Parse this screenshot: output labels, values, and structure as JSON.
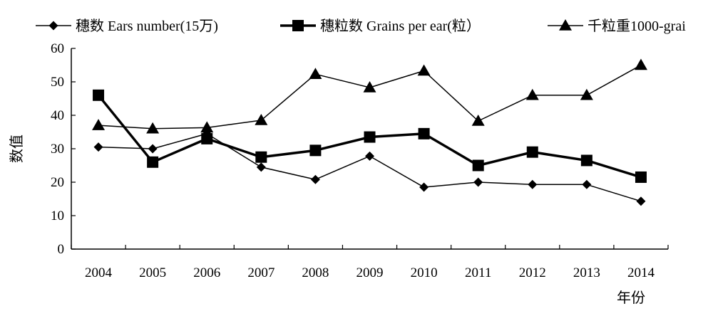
{
  "chart_data": {
    "type": "line",
    "categories": [
      "2004",
      "2005",
      "2006",
      "2007",
      "2008",
      "2009",
      "2010",
      "2011",
      "2012",
      "2013",
      "2014"
    ],
    "series": [
      {
        "name": "穗数 Ears number(15万)",
        "marker": "diamond",
        "values": [
          30.5,
          30,
          34.5,
          24.5,
          20.8,
          27.8,
          18.5,
          20,
          19.3,
          19.3,
          14.3
        ]
      },
      {
        "name": "穗粒数 Grains per ear(粒）",
        "marker": "square",
        "values": [
          46,
          26,
          33,
          27.5,
          29.5,
          33.5,
          34.5,
          25,
          29,
          26.5,
          21.5
        ]
      },
      {
        "name": "千粒重1000-grai",
        "marker": "triangle",
        "values": [
          37,
          36,
          36.3,
          38.5,
          52.3,
          48.3,
          53.3,
          38.3,
          46,
          46,
          55
        ]
      }
    ],
    "ylabel": "数值",
    "xlabel": "年份",
    "ylim": [
      0,
      60
    ],
    "yticks": [
      0,
      10,
      20,
      30,
      40,
      50,
      60
    ],
    "grid": false,
    "legend_position": "top",
    "colors": {
      "line": "#000000",
      "background": "#ffffff"
    }
  }
}
